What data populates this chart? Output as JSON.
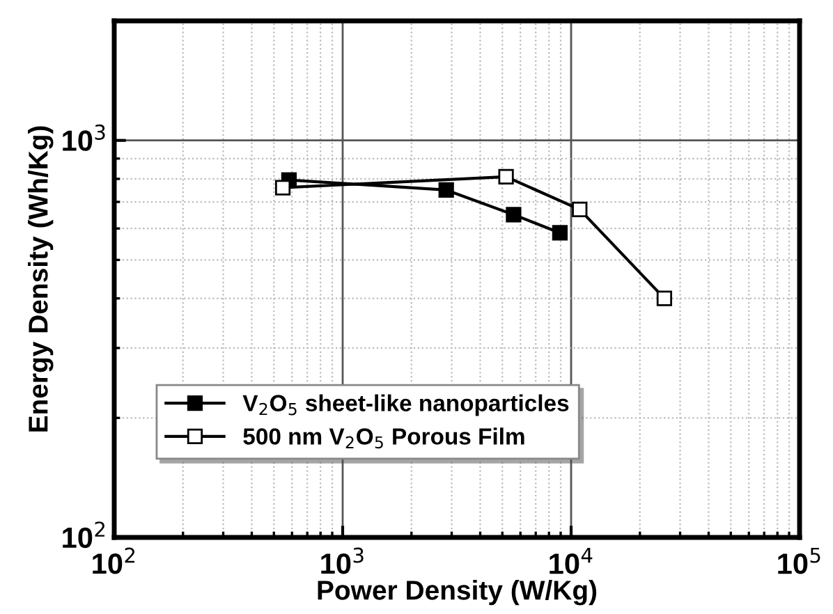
{
  "chart_data": {
    "type": "line",
    "xlabel": "Power Density (W/Kg)",
    "ylabel": "Energy Density (Wh/Kg)",
    "log": "xy",
    "xlim": [
      100,
      100000
    ],
    "ylim": [
      100,
      2000
    ],
    "xticks": [
      {
        "value": 100,
        "label": "10$^{2}$"
      },
      {
        "value": 1000,
        "label": "10$^{3}$"
      },
      {
        "value": 10000,
        "label": "10$^{4}$"
      },
      {
        "value": 100000,
        "label": "10$^{5}$"
      }
    ],
    "yticks": [
      {
        "value": 100,
        "label": "10$^{2}$"
      },
      {
        "value": 1000,
        "label": "10$^{3}$"
      }
    ],
    "grid": true,
    "legend": "bottom left",
    "marker": "square",
    "line_style": "solid",
    "series": [
      {
        "name": "V$_{2}$O$_{5}$ sheet-like nanoparticles",
        "color": "#000000",
        "x": [
          582,
          2840,
          5600,
          8930
        ],
        "values": [
          795,
          750,
          650,
          585
        ]
      },
      {
        "name": "500 nm V$_{2}$O$_{5}$ Porous Film",
        "color": "#000000",
        "x": [
          547,
          5190,
          10900,
          25600
        ],
        "values": [
          760,
          810,
          670,
          400
        ]
      }
    ]
  }
}
